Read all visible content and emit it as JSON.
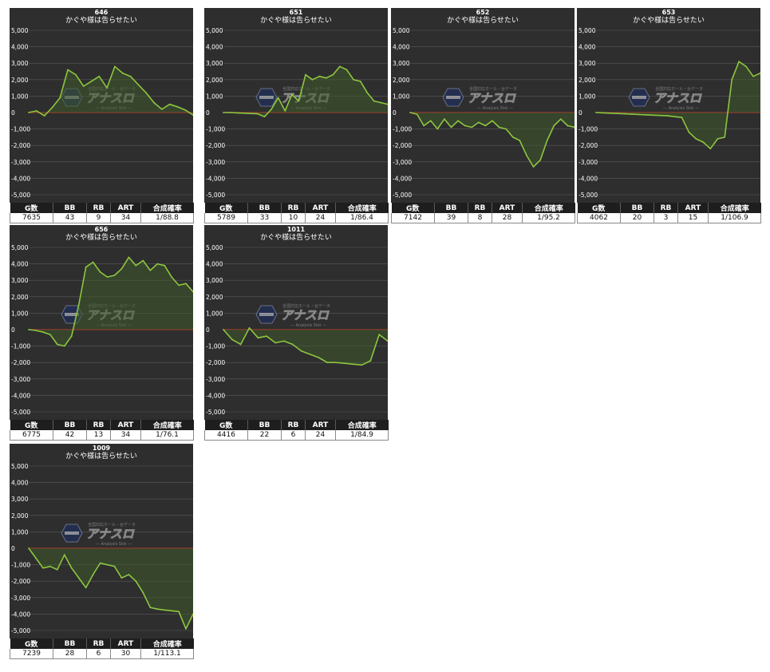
{
  "chart_data": [
    {
      "type": "line",
      "machine": "646",
      "title": "かぐや様は告らせたい",
      "ylim": [
        -5000,
        5000
      ],
      "yticks": [
        "5,000",
        "4,000",
        "3,000",
        "2,000",
        "1,000",
        "0",
        "-1,000",
        "-2,000",
        "-3,000",
        "-4,000",
        "-5,000"
      ],
      "values": [
        0,
        100,
        -200,
        300,
        900,
        2600,
        2300,
        1600,
        1900,
        2200,
        1500,
        2800,
        2400,
        2200,
        1700,
        1200,
        600,
        200,
        500,
        350,
        150,
        -150
      ],
      "headers": [
        "G数",
        "BB",
        "RB",
        "ART",
        "合成確率"
      ],
      "stats": [
        "7635",
        "43",
        "9",
        "34",
        "1/88.8"
      ]
    },
    {
      "type": "line",
      "machine": "651",
      "title": "かぐや様は告らせたい",
      "ylim": [
        -5000,
        5000
      ],
      "yticks": [
        "5,000",
        "4,000",
        "3,000",
        "2,000",
        "1,000",
        "0",
        "-1,000",
        "-2,000",
        "-3,000",
        "-4,000",
        "-5,000"
      ],
      "values": [
        0,
        0,
        -20,
        -40,
        -60,
        -80,
        -250,
        200,
        900,
        100,
        1100,
        700,
        2300,
        2000,
        2200,
        2100,
        2300,
        2800,
        2600,
        2000,
        1900,
        1200,
        700,
        600,
        500
      ],
      "headers": [
        "G数",
        "BB",
        "RB",
        "ART",
        "合成確率"
      ],
      "stats": [
        "5789",
        "33",
        "10",
        "24",
        "1/86.4"
      ]
    },
    {
      "type": "line",
      "machine": "652",
      "title": "かぐや様は告らせたい",
      "ylim": [
        -5000,
        5000
      ],
      "yticks": [
        "5,000",
        "4,000",
        "3,000",
        "2,000",
        "1,000",
        "0",
        "-1,000",
        "-2,000",
        "-3,000",
        "-4,000",
        "-5,000"
      ],
      "values": [
        0,
        -100,
        -800,
        -500,
        -1000,
        -400,
        -900,
        -500,
        -800,
        -900,
        -600,
        -800,
        -500,
        -900,
        -1000,
        -1500,
        -1700,
        -2600,
        -3300,
        -2900,
        -1700,
        -800,
        -400,
        -800,
        -900
      ],
      "headers": [
        "G数",
        "BB",
        "RB",
        "ART",
        "合成確率"
      ],
      "stats": [
        "7142",
        "39",
        "8",
        "28",
        "1/95.2"
      ]
    },
    {
      "type": "line",
      "machine": "653",
      "title": "かぐや様は告らせたい",
      "ylim": [
        -5000,
        5000
      ],
      "yticks": [
        "5,000",
        "4,000",
        "3,000",
        "2,000",
        "1,000",
        "0",
        "-1,000",
        "-2,000",
        "-3,000",
        "-4,000",
        "-5,000"
      ],
      "values": [
        0,
        -20,
        -40,
        -60,
        -80,
        -100,
        -120,
        -140,
        -160,
        -180,
        -200,
        -250,
        -300,
        -1200,
        -1600,
        -1800,
        -2200,
        -1600,
        -1500,
        2000,
        3100,
        2800,
        2200,
        2400
      ],
      "headers": [
        "G数",
        "BB",
        "RB",
        "ART",
        "合成確率"
      ],
      "stats": [
        "4062",
        "20",
        "3",
        "15",
        "1/106.9"
      ]
    },
    {
      "type": "line",
      "machine": "656",
      "title": "かぐや様は告らせたい",
      "ylim": [
        -5000,
        5000
      ],
      "yticks": [
        "5,000",
        "4,000",
        "3,000",
        "2,000",
        "1,000",
        "0",
        "-1,000",
        "-2,000",
        "-3,000",
        "-4,000",
        "-5,000"
      ],
      "values": [
        0,
        -50,
        -150,
        -300,
        -900,
        -1000,
        -400,
        1500,
        3800,
        4100,
        3500,
        3200,
        3300,
        3700,
        4400,
        3900,
        4200,
        3600,
        4000,
        3900,
        3200,
        2700,
        2800,
        2300
      ],
      "headers": [
        "G数",
        "BB",
        "RB",
        "ART",
        "合成確率"
      ],
      "stats": [
        "6775",
        "42",
        "13",
        "34",
        "1/76.1"
      ]
    },
    {
      "type": "line",
      "machine": "1011",
      "title": "かぐや様は告らせたい",
      "ylim": [
        -5000,
        5000
      ],
      "yticks": [
        "5,000",
        "4,000",
        "3,000",
        "2,000",
        "1,000",
        "0",
        "-1,000",
        "-2,000",
        "-3,000",
        "-4,000",
        "-5,000"
      ],
      "values": [
        0,
        -600,
        -900,
        100,
        -500,
        -400,
        -800,
        -700,
        -900,
        -1300,
        -1500,
        -1700,
        -2000,
        -2000,
        -2050,
        -2100,
        -2150,
        -1900,
        -300,
        -700
      ],
      "headers": [
        "G数",
        "BB",
        "RB",
        "ART",
        "合成確率"
      ],
      "stats": [
        "4416",
        "22",
        "6",
        "24",
        "1/84.9"
      ]
    },
    {
      "type": "line",
      "machine": "1009",
      "title": "かぐや様は告らせたい",
      "ylim": [
        -5000,
        5000
      ],
      "yticks": [
        "5,000",
        "4,000",
        "3,000",
        "2,000",
        "1,000",
        "0",
        "-1,000",
        "-2,000",
        "-3,000",
        "-4,000",
        "-5,000"
      ],
      "values": [
        0,
        -600,
        -1200,
        -1100,
        -1300,
        -400,
        -1200,
        -1800,
        -2400,
        -1600,
        -900,
        -1000,
        -1100,
        -1800,
        -1600,
        -2000,
        -2700,
        -3600,
        -3700,
        -3750,
        -3800,
        -3850,
        -4900,
        -4000
      ],
      "headers": [
        "G数",
        "BB",
        "RB",
        "ART",
        "合成確率"
      ],
      "stats": [
        "7239",
        "28",
        "6",
        "30",
        "1/113.1"
      ]
    }
  ],
  "watermark": {
    "logo_text": "アナスロ",
    "top_text": "全国対応ホール・台データ",
    "sub_text": "— Analysis Slot —"
  },
  "colors": {
    "plot_bg": "#2e2e2e",
    "line": "#8cc63f",
    "fill": "#3f5a2c",
    "zero_line": "#a33a2a",
    "grid": "#5a5a5a",
    "text": "#ffffff"
  }
}
